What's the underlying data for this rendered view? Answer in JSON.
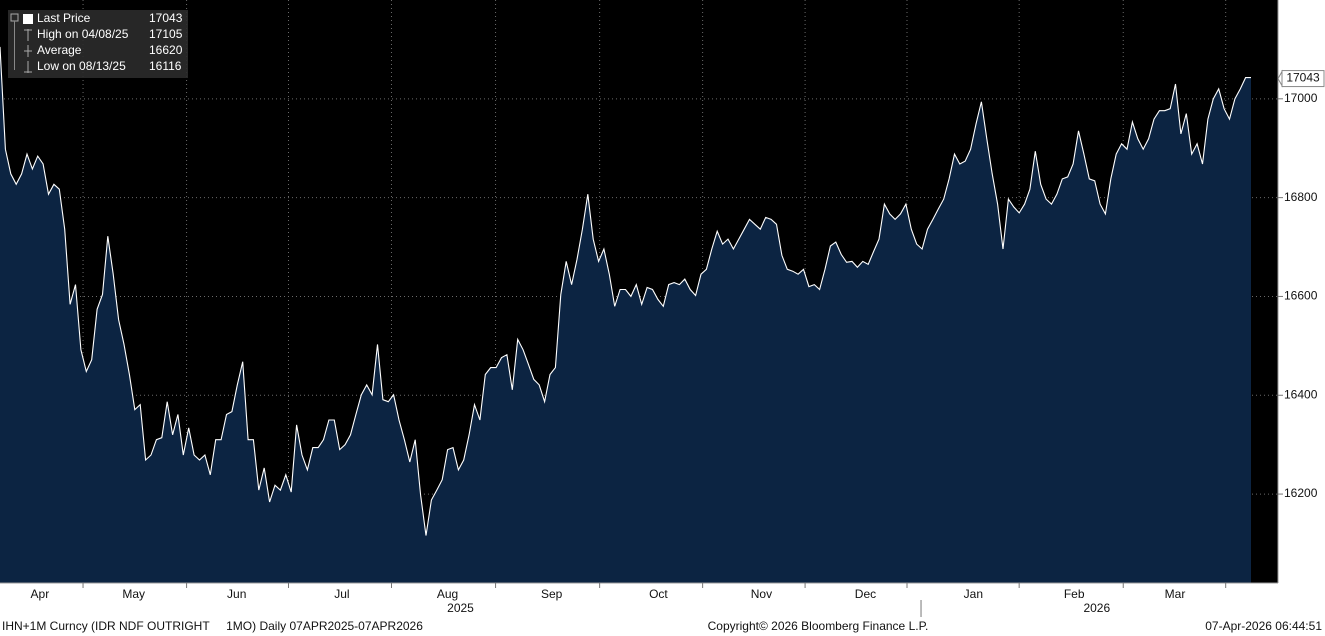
{
  "chart_data": {
    "type": "area",
    "legend": [
      {
        "label": "Last Price",
        "value": "17043"
      },
      {
        "label": "High on 04/08/25",
        "value": "17105"
      },
      {
        "label": "Average",
        "value": "16620"
      },
      {
        "label": "Low on 08/13/25",
        "value": "16116"
      }
    ],
    "series": [
      {
        "name": "Last Price",
        "color": "#ffffff",
        "fill": "#0c2442",
        "values": [
          17105,
          16898,
          16848,
          16827,
          16848,
          16888,
          16858,
          16884,
          16868,
          16807,
          16827,
          16817,
          16736,
          16584,
          16624,
          16492,
          16448,
          16472,
          16574,
          16604,
          16722,
          16645,
          16553,
          16503,
          16442,
          16371,
          16381,
          16269,
          16279,
          16310,
          16314,
          16387,
          16320,
          16361,
          16279,
          16334,
          16279,
          16269,
          16279,
          16239,
          16310,
          16310,
          16361,
          16367,
          16421,
          16468,
          16310,
          16310,
          16208,
          16253,
          16184,
          16218,
          16208,
          16239,
          16204,
          16340,
          16279,
          16249,
          16294,
          16294,
          16310,
          16350,
          16350,
          16290,
          16300,
          16320,
          16361,
          16401,
          16421,
          16401,
          16503,
          16391,
          16387,
          16401,
          16350,
          16310,
          16265,
          16310,
          16198,
          16116,
          16188,
          16208,
          16229,
          16290,
          16294,
          16249,
          16269,
          16320,
          16381,
          16350,
          16442,
          16456,
          16456,
          16476,
          16482,
          16411,
          16513,
          16492,
          16462,
          16432,
          16421,
          16387,
          16442,
          16456,
          16604,
          16671,
          16624,
          16675,
          16736,
          16807,
          16716,
          16671,
          16696,
          16645,
          16580,
          16614,
          16614,
          16600,
          16624,
          16584,
          16618,
          16614,
          16594,
          16580,
          16624,
          16628,
          16624,
          16635,
          16614,
          16602,
          16645,
          16655,
          16696,
          16732,
          16706,
          16716,
          16696,
          16716,
          16736,
          16756,
          16746,
          16736,
          16760,
          16756,
          16746,
          16683,
          16655,
          16651,
          16645,
          16655,
          16620,
          16624,
          16614,
          16655,
          16702,
          16710,
          16685,
          16669,
          16671,
          16659,
          16671,
          16665,
          16691,
          16716,
          16787,
          16767,
          16756,
          16767,
          16787,
          16736,
          16706,
          16696,
          16736,
          16756,
          16777,
          16797,
          16838,
          16888,
          16868,
          16874,
          16898,
          16949,
          16994,
          16919,
          16848,
          16787,
          16696,
          16797,
          16781,
          16769,
          16787,
          16817,
          16894,
          16827,
          16797,
          16787,
          16807,
          16838,
          16842,
          16868,
          16935,
          16888,
          16838,
          16834,
          16787,
          16767,
          16838,
          16888,
          16909,
          16898,
          16953,
          16919,
          16898,
          16919,
          16959,
          16976,
          16976,
          16980,
          17030,
          16929,
          16970,
          16888,
          16909,
          16868,
          16959,
          17000,
          17020,
          16980,
          16959,
          17000,
          17020,
          17043,
          17043
        ],
        "last_label": "17043"
      }
    ],
    "xlim": [
      0,
      237
    ],
    "xgrid": [
      15.4,
      34.6,
      53.5,
      72.6,
      91.9,
      111.2,
      130.3,
      149.3,
      168.2,
      189,
      208.3,
      227.3
    ],
    "xticks": [
      {
        "value": 7.4,
        "label": "Apr"
      },
      {
        "value": 24.8,
        "label": "May"
      },
      {
        "value": 43.9,
        "label": "Jun"
      },
      {
        "value": 63.4,
        "label": "Jul"
      },
      {
        "value": 83,
        "label": "Aug"
      },
      {
        "value": 102.3,
        "label": "Sep"
      },
      {
        "value": 122.1,
        "label": "Oct"
      },
      {
        "value": 141.2,
        "label": "Nov"
      },
      {
        "value": 160.5,
        "label": "Dec"
      },
      {
        "value": 180.5,
        "label": "Jan"
      },
      {
        "value": 199.2,
        "label": "Feb"
      },
      {
        "value": 217.9,
        "label": "Mar"
      }
    ],
    "year_labels": [
      {
        "value": 85.4,
        "label": "2025"
      },
      {
        "value": 203.4,
        "label": "2026"
      }
    ],
    "year_separator": 170.8,
    "ylim": [
      16020,
      17200
    ],
    "yticks": [
      16200,
      16400,
      16600,
      16800,
      17000
    ],
    "grid": true,
    "footer": {
      "left": "IHN+1M Curncy (IDR NDF OUTRIGHT     1MO) Daily 07APR2025-07APR2026",
      "center": "Copyright© 2026 Bloomberg Finance L.P.",
      "right": "07-Apr-2026 06:44:51"
    }
  }
}
